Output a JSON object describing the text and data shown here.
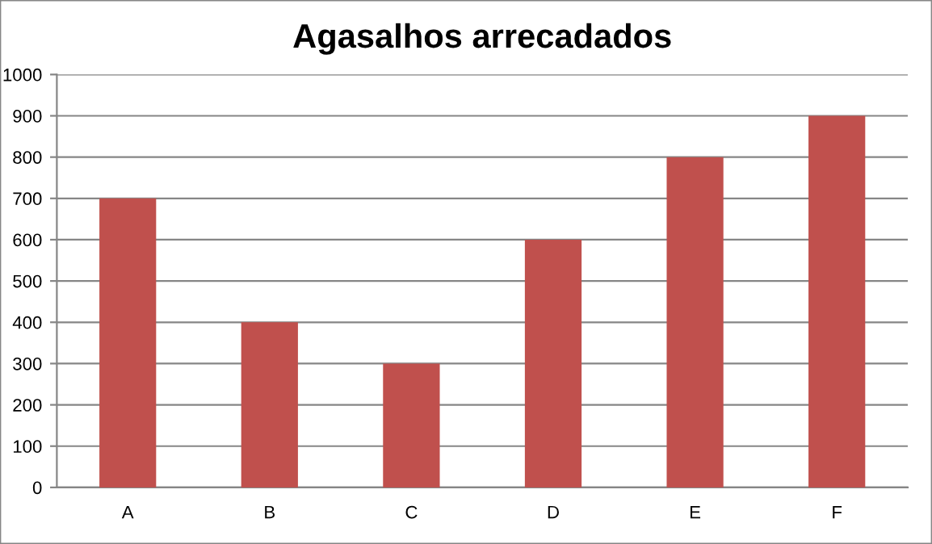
{
  "chart_data": {
    "type": "bar",
    "title": "Agasalhos arrecadados",
    "categories": [
      "A",
      "B",
      "C",
      "D",
      "E",
      "F"
    ],
    "values": [
      700,
      400,
      300,
      600,
      800,
      900
    ],
    "color": "#c0504d",
    "ylim": [
      0,
      1000
    ],
    "yticks": [
      0,
      100,
      200,
      300,
      400,
      500,
      600,
      700,
      800,
      900,
      1000
    ],
    "grid": "y",
    "legend": false
  }
}
